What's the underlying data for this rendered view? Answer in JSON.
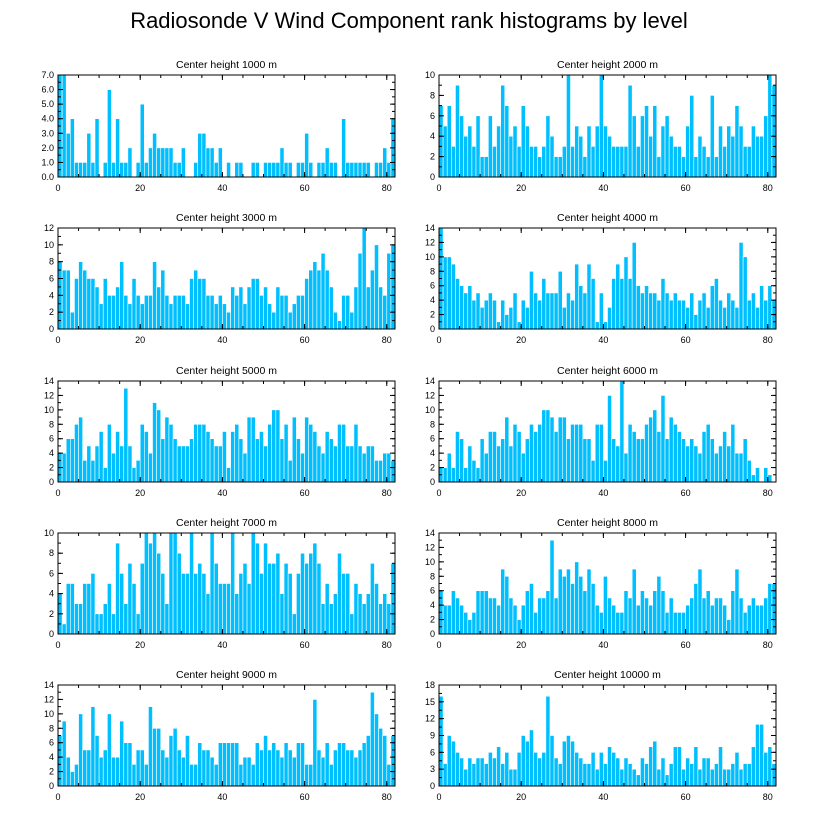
{
  "title": "Radiosonde V Wind Component rank histograms by level",
  "style": {
    "bar_color": "#00bfff",
    "bar_edge": "#ffffff",
    "axis_color": "#000000"
  },
  "chart_data": [
    {
      "type": "bar",
      "title": "Center height 1000 m",
      "xlim": [
        0,
        82
      ],
      "ylim": [
        0,
        7
      ],
      "xticks": [
        0,
        20,
        40,
        60,
        80
      ],
      "xtick_labels": [
        "0",
        "20",
        "40",
        "60",
        "80"
      ],
      "yticks": [
        0,
        1,
        2,
        3,
        4,
        5,
        6,
        7
      ],
      "ytick_labels": [
        "0.0",
        "1.0",
        "2.0",
        "3.0",
        "4.0",
        "5.0",
        "6.0",
        "7.0"
      ],
      "values": [
        7,
        7,
        3,
        4,
        1,
        1,
        1,
        3,
        1,
        4,
        0,
        1,
        6,
        1,
        4,
        1,
        1,
        2,
        0,
        1,
        5,
        1,
        2,
        3,
        2,
        2,
        2,
        2,
        1,
        1,
        2,
        0,
        0,
        1,
        3,
        3,
        2,
        2,
        1,
        2,
        0,
        1,
        0,
        1,
        1,
        0,
        0,
        1,
        1,
        0,
        1,
        1,
        1,
        1,
        2,
        1,
        1,
        0,
        1,
        1,
        3,
        1,
        0,
        1,
        1,
        2,
        1,
        1,
        0,
        4,
        1,
        1,
        1,
        1,
        1,
        1,
        0,
        1,
        1,
        2,
        1,
        4
      ]
    },
    {
      "type": "bar",
      "title": "Center height 2000 m",
      "xlim": [
        0,
        82
      ],
      "ylim": [
        0,
        10
      ],
      "xticks": [
        0,
        20,
        40,
        60,
        80
      ],
      "xtick_labels": [
        "0",
        "20",
        "40",
        "60",
        "80"
      ],
      "yticks": [
        0,
        2,
        4,
        6,
        8,
        10
      ],
      "ytick_labels": [
        "0",
        "2",
        "4",
        "6",
        "8",
        "10"
      ],
      "values": [
        7,
        5,
        7,
        3,
        9,
        6,
        4,
        5,
        3,
        6,
        2,
        2,
        6,
        3,
        5,
        9,
        7,
        4,
        5,
        3,
        7,
        5,
        3,
        3,
        2,
        3,
        6,
        4,
        2,
        2,
        3,
        10,
        3,
        5,
        4,
        2,
        5,
        3,
        5,
        10,
        5,
        4,
        3,
        3,
        3,
        3,
        9,
        6,
        3,
        6,
        7,
        4,
        7,
        2,
        5,
        6,
        4,
        3,
        3,
        2,
        5,
        8,
        2,
        4,
        3,
        2,
        8,
        2,
        5,
        3,
        5,
        4,
        7,
        5,
        3,
        3,
        5,
        4,
        4,
        6,
        10,
        9
      ]
    },
    {
      "type": "bar",
      "title": "Center height 3000 m",
      "xlim": [
        0,
        82
      ],
      "ylim": [
        0,
        12
      ],
      "xticks": [
        0,
        20,
        40,
        60,
        80
      ],
      "xtick_labels": [
        "0",
        "20",
        "40",
        "60",
        "80"
      ],
      "yticks": [
        0,
        2,
        4,
        6,
        8,
        10,
        12
      ],
      "ytick_labels": [
        "0",
        "2",
        "4",
        "6",
        "8",
        "10",
        "12"
      ],
      "values": [
        8,
        7,
        7,
        2,
        6,
        8,
        7,
        6,
        6,
        5,
        3,
        6,
        4,
        4,
        5,
        8,
        4,
        3,
        6,
        4,
        3,
        4,
        4,
        8,
        5,
        7,
        4,
        3,
        4,
        4,
        4,
        3,
        6,
        7,
        6,
        6,
        4,
        4,
        3,
        4,
        3,
        2,
        5,
        4,
        5,
        3,
        5,
        6,
        6,
        4,
        5,
        3,
        2,
        5,
        4,
        4,
        2,
        3,
        4,
        4,
        6,
        7,
        8,
        7,
        9,
        7,
        5,
        2,
        1,
        4,
        4,
        2,
        5,
        9,
        12,
        5,
        7,
        10,
        5,
        4,
        9,
        10
      ]
    },
    {
      "type": "bar",
      "title": "Center height 4000 m",
      "xlim": [
        0,
        82
      ],
      "ylim": [
        0,
        14
      ],
      "xticks": [
        0,
        20,
        40,
        60,
        80
      ],
      "xtick_labels": [
        "0",
        "20",
        "40",
        "60",
        "80"
      ],
      "yticks": [
        0,
        2,
        4,
        6,
        8,
        10,
        12,
        14
      ],
      "ytick_labels": [
        "0",
        "2",
        "4",
        "6",
        "8",
        "10",
        "12",
        "14"
      ],
      "values": [
        14,
        10,
        10,
        9,
        7,
        6,
        5,
        6,
        4,
        5,
        3,
        4,
        5,
        4,
        1,
        4,
        2,
        3,
        5,
        1,
        4,
        3,
        8,
        5,
        4,
        7,
        5,
        5,
        5,
        8,
        3,
        5,
        4,
        9,
        6,
        5,
        9,
        7,
        1,
        5,
        1,
        3,
        7,
        9,
        7,
        10,
        7,
        12,
        6,
        5,
        6,
        5,
        5,
        4,
        7,
        5,
        4,
        5,
        4,
        4,
        3,
        5,
        2,
        4,
        5,
        3,
        6,
        7,
        4,
        3,
        5,
        4,
        3,
        12,
        10,
        4,
        5,
        3,
        6,
        4,
        6,
        4
      ]
    },
    {
      "type": "bar",
      "title": "Center height 5000 m",
      "xlim": [
        0,
        82
      ],
      "ylim": [
        0,
        14
      ],
      "xticks": [
        0,
        20,
        40,
        60,
        80
      ],
      "xtick_labels": [
        "0",
        "20",
        "40",
        "60",
        "80"
      ],
      "yticks": [
        0,
        2,
        4,
        6,
        8,
        10,
        12,
        14
      ],
      "ytick_labels": [
        "0",
        "2",
        "4",
        "6",
        "8",
        "10",
        "12",
        "14"
      ],
      "values": [
        4,
        4,
        6,
        6,
        8,
        9,
        3,
        5,
        3,
        5,
        7,
        2,
        8,
        4,
        7,
        5,
        13,
        5,
        2,
        3,
        8,
        7,
        4,
        11,
        10,
        6,
        9,
        8,
        6,
        5,
        5,
        5,
        6,
        8,
        8,
        8,
        7,
        6,
        5,
        5,
        7,
        2,
        7,
        8,
        6,
        4,
        9,
        9,
        6,
        7,
        5,
        8,
        10,
        10,
        6,
        8,
        3,
        9,
        6,
        4,
        9,
        8,
        7,
        5,
        4,
        7,
        6,
        5,
        8,
        8,
        5,
        5,
        8,
        5,
        4,
        5,
        5,
        3,
        3,
        4,
        4,
        3
      ]
    },
    {
      "type": "bar",
      "title": "Center height 6000 m",
      "xlim": [
        0,
        82
      ],
      "ylim": [
        0,
        14
      ],
      "xticks": [
        0,
        20,
        40,
        60,
        80
      ],
      "xtick_labels": [
        "0",
        "20",
        "40",
        "60",
        "80"
      ],
      "yticks": [
        0,
        2,
        4,
        6,
        8,
        10,
        12,
        14
      ],
      "ytick_labels": [
        "0",
        "2",
        "4",
        "6",
        "8",
        "10",
        "12",
        "14"
      ],
      "values": [
        2,
        2,
        4,
        2,
        7,
        6,
        2,
        5,
        3,
        2,
        6,
        4,
        7,
        7,
        5,
        6,
        9,
        5,
        8,
        7,
        4,
        6,
        8,
        7,
        8,
        10,
        10,
        9,
        7,
        9,
        9,
        6,
        8,
        8,
        8,
        6,
        6,
        3,
        8,
        8,
        3,
        12,
        6,
        5,
        14,
        4,
        8,
        7,
        6,
        6,
        8,
        9,
        10,
        7,
        12,
        6,
        9,
        8,
        7,
        6,
        5,
        6,
        5,
        4,
        7,
        8,
        6,
        4,
        5,
        7,
        5,
        8,
        4,
        4,
        6,
        3,
        1,
        2,
        0,
        2,
        1,
        0
      ]
    },
    {
      "type": "bar",
      "title": "Center height 7000 m",
      "xlim": [
        0,
        82
      ],
      "ylim": [
        0,
        10
      ],
      "xticks": [
        0,
        20,
        40,
        60,
        80
      ],
      "xtick_labels": [
        "0",
        "20",
        "40",
        "60",
        "80"
      ],
      "yticks": [
        0,
        2,
        4,
        6,
        8,
        10
      ],
      "ytick_labels": [
        "0",
        "2",
        "4",
        "6",
        "8",
        "10"
      ],
      "values": [
        4,
        1,
        5,
        5,
        3,
        3,
        5,
        5,
        6,
        2,
        2,
        3,
        5,
        2,
        9,
        6,
        3,
        7,
        5,
        2,
        7,
        10,
        9,
        10,
        8,
        6,
        3,
        10,
        10,
        8,
        6,
        6,
        10,
        6,
        7,
        6,
        4,
        10,
        7,
        5,
        5,
        5,
        10,
        4,
        6,
        7,
        5,
        10,
        9,
        6,
        9,
        7,
        7,
        8,
        4,
        7,
        6,
        2,
        6,
        8,
        7,
        8,
        9,
        7,
        3,
        5,
        3,
        4,
        8,
        6,
        6,
        2,
        5,
        4,
        3,
        4,
        7,
        5,
        3,
        4,
        3,
        7
      ]
    },
    {
      "type": "bar",
      "title": "Center height 8000 m",
      "xlim": [
        0,
        82
      ],
      "ylim": [
        0,
        14
      ],
      "xticks": [
        0,
        20,
        40,
        60,
        80
      ],
      "xtick_labels": [
        "0",
        "20",
        "40",
        "60",
        "80"
      ],
      "yticks": [
        0,
        2,
        4,
        6,
        8,
        10,
        12,
        14
      ],
      "ytick_labels": [
        "0",
        "2",
        "4",
        "6",
        "8",
        "10",
        "12",
        "14"
      ],
      "values": [
        6,
        4,
        4,
        6,
        5,
        4,
        3,
        2,
        3,
        6,
        6,
        6,
        5,
        5,
        4,
        9,
        8,
        5,
        4,
        2,
        4,
        6,
        7,
        3,
        5,
        5,
        6,
        13,
        5,
        9,
        8,
        9,
        7,
        10,
        8,
        6,
        9,
        7,
        4,
        3,
        8,
        5,
        4,
        3,
        3,
        6,
        5,
        9,
        4,
        6,
        5,
        4,
        6,
        8,
        6,
        3,
        5,
        3,
        3,
        3,
        4,
        5,
        7,
        9,
        5,
        6,
        4,
        5,
        5,
        4,
        2,
        6,
        9,
        5,
        3,
        4,
        5,
        4,
        4,
        5,
        7,
        7
      ]
    },
    {
      "type": "bar",
      "title": "Center height 9000 m",
      "xlim": [
        0,
        82
      ],
      "ylim": [
        0,
        14
      ],
      "xticks": [
        0,
        20,
        40,
        60,
        80
      ],
      "xtick_labels": [
        "0",
        "20",
        "40",
        "60",
        "80"
      ],
      "yticks": [
        0,
        2,
        4,
        6,
        8,
        10,
        12,
        14
      ],
      "ytick_labels": [
        "0",
        "2",
        "4",
        "6",
        "8",
        "10",
        "12",
        "14"
      ],
      "values": [
        7,
        9,
        4,
        2,
        3,
        10,
        5,
        5,
        11,
        7,
        4,
        5,
        10,
        4,
        4,
        9,
        6,
        6,
        3,
        5,
        5,
        3,
        11,
        8,
        8,
        5,
        4,
        7,
        8,
        5,
        4,
        7,
        3,
        3,
        6,
        5,
        5,
        4,
        3,
        6,
        6,
        6,
        6,
        6,
        3,
        4,
        4,
        3,
        6,
        5,
        7,
        5,
        6,
        5,
        4,
        6,
        5,
        4,
        6,
        6,
        3,
        3,
        12,
        5,
        4,
        6,
        3,
        5,
        6,
        6,
        5,
        5,
        4,
        5,
        6,
        7,
        13,
        10,
        8,
        7,
        3,
        7
      ]
    },
    {
      "type": "bar",
      "title": "Center height 10000 m",
      "xlim": [
        0,
        82
      ],
      "ylim": [
        0,
        18
      ],
      "xticks": [
        0,
        20,
        40,
        60,
        80
      ],
      "xtick_labels": [
        "0",
        "20",
        "40",
        "60",
        "80"
      ],
      "yticks": [
        0,
        3,
        6,
        9,
        12,
        15,
        18
      ],
      "ytick_labels": [
        "0",
        "3",
        "6",
        "9",
        "12",
        "15",
        "18"
      ],
      "values": [
        16,
        4,
        9,
        8,
        6,
        5,
        3,
        5,
        4,
        5,
        5,
        4,
        6,
        5,
        7,
        4,
        6,
        3,
        3,
        6,
        9,
        8,
        10,
        6,
        5,
        6,
        16,
        9,
        5,
        4,
        8,
        9,
        8,
        6,
        5,
        4,
        4,
        6,
        3,
        6,
        4,
        7,
        6,
        5,
        3,
        5,
        4,
        3,
        2,
        5,
        4,
        7,
        8,
        3,
        5,
        2,
        4,
        7,
        7,
        3,
        5,
        4,
        7,
        3,
        5,
        5,
        3,
        4,
        7,
        3,
        3,
        4,
        6,
        3,
        4,
        4,
        7,
        11,
        11,
        6,
        7,
        4
      ]
    }
  ]
}
